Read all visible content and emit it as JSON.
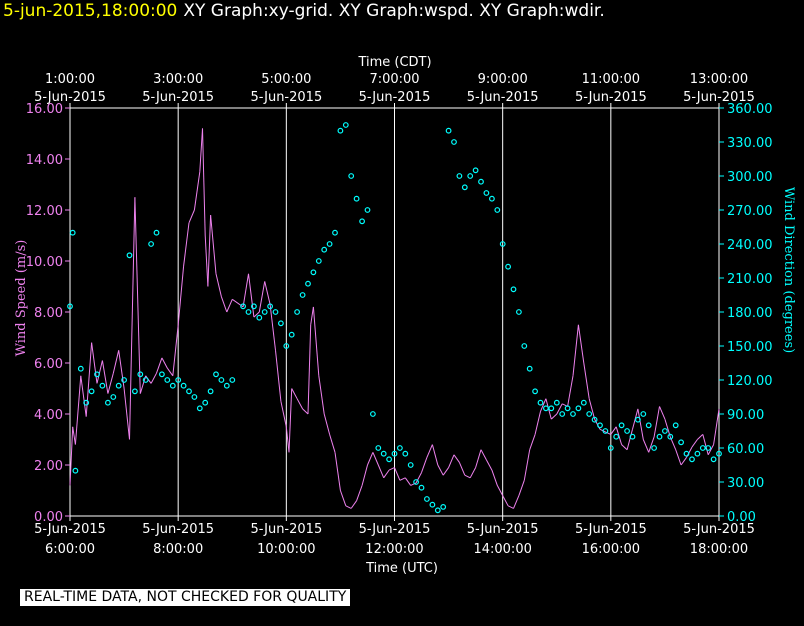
{
  "header": {
    "timestamp": "5-jun-2015,18:00:00",
    "graphs": "XY Graph:xy-grid.  XY Graph:wspd.  XY Graph:wdir."
  },
  "footer_note": "REAL-TIME DATA, NOT CHECKED FOR QUALITY",
  "colors": {
    "background": "#000000",
    "wspd": "#ee82ee",
    "wdir": "#00ffff",
    "grid": "#ffffff",
    "timestamp": "#ffff00"
  },
  "chart_data": {
    "type": "line",
    "grid": true,
    "x_top_title": "Time (CDT)",
    "x_bottom_title": "Time (UTC)",
    "x_range_utc_hours": [
      6.0,
      18.0
    ],
    "x_top_ticks": [
      {
        "time": "1:00:00",
        "date": "5-Jun-2015",
        "utc_hour": 6
      },
      {
        "time": "3:00:00",
        "date": "5-Jun-2015",
        "utc_hour": 8
      },
      {
        "time": "5:00:00",
        "date": "5-Jun-2015",
        "utc_hour": 10
      },
      {
        "time": "7:00:00",
        "date": "5-Jun-2015",
        "utc_hour": 12
      },
      {
        "time": "9:00:00",
        "date": "5-Jun-2015",
        "utc_hour": 14
      },
      {
        "time": "11:00:00",
        "date": "5-Jun-2015",
        "utc_hour": 16
      },
      {
        "time": "13:00:00",
        "date": "5-Jun-2015",
        "utc_hour": 18
      }
    ],
    "x_bottom_ticks": [
      {
        "time": "6:00:00",
        "date": "5-Jun-2015",
        "utc_hour": 6
      },
      {
        "time": "8:00:00",
        "date": "5-Jun-2015",
        "utc_hour": 8
      },
      {
        "time": "10:00:00",
        "date": "5-Jun-2015",
        "utc_hour": 10
      },
      {
        "time": "12:00:00",
        "date": "5-Jun-2015",
        "utc_hour": 12
      },
      {
        "time": "14:00:00",
        "date": "5-Jun-2015",
        "utc_hour": 14
      },
      {
        "time": "16:00:00",
        "date": "5-Jun-2015",
        "utc_hour": 16
      },
      {
        "time": "18:00:00",
        "date": "5-Jun-2015",
        "utc_hour": 18
      }
    ],
    "y_left": {
      "label": "Wind Speed (m/s)",
      "range": [
        0,
        16
      ],
      "ticks": [
        "0.00",
        "2.00",
        "4.00",
        "6.00",
        "8.00",
        "10.00",
        "12.00",
        "14.00",
        "16.00"
      ]
    },
    "y_right": {
      "label": "Wind Direction (degrees)",
      "range": [
        0,
        360
      ],
      "ticks": [
        "0.00",
        "30.00",
        "60.00",
        "90.00",
        "120.00",
        "150.00",
        "180.00",
        "210.00",
        "240.00",
        "270.00",
        "300.00",
        "330.00",
        "360.00"
      ]
    },
    "series": [
      {
        "key": "wspd",
        "axis": "left",
        "style": "line",
        "color": "#ee82ee",
        "x": [
          6.0,
          6.05,
          6.1,
          6.2,
          6.3,
          6.4,
          6.5,
          6.6,
          6.7,
          6.8,
          6.9,
          7.0,
          7.1,
          7.2,
          7.3,
          7.4,
          7.5,
          7.6,
          7.7,
          7.8,
          7.9,
          8.0,
          8.1,
          8.2,
          8.3,
          8.4,
          8.45,
          8.5,
          8.55,
          8.6,
          8.7,
          8.8,
          8.9,
          9.0,
          9.2,
          9.3,
          9.4,
          9.5,
          9.6,
          9.7,
          9.8,
          9.9,
          10.0,
          10.05,
          10.1,
          10.2,
          10.3,
          10.4,
          10.45,
          10.5,
          10.6,
          10.7,
          10.8,
          10.9,
          11.0,
          11.1,
          11.2,
          11.3,
          11.4,
          11.5,
          11.6,
          11.7,
          11.8,
          11.9,
          12.0,
          12.1,
          12.2,
          12.3,
          12.4,
          12.5,
          12.6,
          12.7,
          12.8,
          12.9,
          13.0,
          13.1,
          13.2,
          13.3,
          13.4,
          13.5,
          13.6,
          13.7,
          13.8,
          13.9,
          14.0,
          14.1,
          14.2,
          14.3,
          14.4,
          14.5,
          14.6,
          14.7,
          14.8,
          14.9,
          15.0,
          15.1,
          15.2,
          15.3,
          15.4,
          15.5,
          15.6,
          15.7,
          15.8,
          15.9,
          16.0,
          16.1,
          16.2,
          16.3,
          16.4,
          16.5,
          16.6,
          16.7,
          16.8,
          16.9,
          17.0,
          17.1,
          17.2,
          17.3,
          17.4,
          17.5,
          17.6,
          17.7,
          17.8,
          17.9,
          18.0
        ],
        "y": [
          1.2,
          3.5,
          2.8,
          5.5,
          3.9,
          6.8,
          5.2,
          6.1,
          4.8,
          5.6,
          6.5,
          5.0,
          3.0,
          12.5,
          4.8,
          5.5,
          5.2,
          5.6,
          6.2,
          5.8,
          5.5,
          7.5,
          9.8,
          11.5,
          12.0,
          13.5,
          15.2,
          11.0,
          9.0,
          11.8,
          9.5,
          8.6,
          8.0,
          8.5,
          8.2,
          9.5,
          7.8,
          8.0,
          9.2,
          8.3,
          6.5,
          4.5,
          3.5,
          2.5,
          5.0,
          4.6,
          4.2,
          4.0,
          7.5,
          8.2,
          5.5,
          4.0,
          3.2,
          2.5,
          1.0,
          0.4,
          0.3,
          0.6,
          1.2,
          2.0,
          2.5,
          2.0,
          1.5,
          1.8,
          1.9,
          1.4,
          1.5,
          1.2,
          1.3,
          1.7,
          2.3,
          2.8,
          2.0,
          1.6,
          1.9,
          2.4,
          2.1,
          1.6,
          1.5,
          1.9,
          2.6,
          2.2,
          1.8,
          1.2,
          0.8,
          0.4,
          0.3,
          0.8,
          1.4,
          2.6,
          3.2,
          4.1,
          4.6,
          3.8,
          4.0,
          4.4,
          4.3,
          5.5,
          7.5,
          6.0,
          4.6,
          3.8,
          3.4,
          3.3,
          3.2,
          3.5,
          2.8,
          2.6,
          3.4,
          4.2,
          3.0,
          2.5,
          3.1,
          4.3,
          3.8,
          3.1,
          2.6,
          2.0,
          2.3,
          2.7,
          3.0,
          3.2,
          2.4,
          2.8,
          4.2
        ]
      },
      {
        "key": "wdir",
        "axis": "right",
        "style": "markers",
        "color": "#00ffff",
        "x": [
          6.0,
          6.05,
          6.1,
          6.2,
          6.3,
          6.4,
          6.5,
          6.6,
          6.7,
          6.8,
          6.9,
          7.0,
          7.1,
          7.2,
          7.3,
          7.4,
          7.5,
          7.6,
          7.7,
          7.8,
          7.9,
          8.0,
          8.1,
          8.2,
          8.3,
          8.4,
          8.5,
          8.6,
          8.7,
          8.8,
          8.9,
          9.0,
          9.2,
          9.3,
          9.4,
          9.5,
          9.6,
          9.7,
          9.8,
          9.9,
          10.0,
          10.1,
          10.2,
          10.3,
          10.4,
          10.5,
          10.6,
          10.7,
          10.8,
          10.9,
          11.0,
          11.1,
          11.2,
          11.3,
          11.4,
          11.5,
          11.6,
          11.7,
          11.8,
          11.9,
          12.0,
          12.1,
          12.2,
          12.3,
          12.4,
          12.5,
          12.6,
          12.7,
          12.8,
          12.9,
          13.0,
          13.1,
          13.2,
          13.3,
          13.4,
          13.5,
          13.6,
          13.7,
          13.8,
          13.9,
          14.0,
          14.1,
          14.2,
          14.3,
          14.4,
          14.5,
          14.6,
          14.7,
          14.8,
          14.9,
          15.0,
          15.1,
          15.2,
          15.3,
          15.4,
          15.5,
          15.6,
          15.7,
          15.8,
          15.9,
          16.0,
          16.1,
          16.2,
          16.3,
          16.4,
          16.5,
          16.6,
          16.7,
          16.8,
          16.9,
          17.0,
          17.1,
          17.2,
          17.3,
          17.4,
          17.5,
          17.6,
          17.7,
          17.8,
          17.9,
          18.0
        ],
        "y": [
          185,
          250,
          40,
          130,
          100,
          110,
          125,
          115,
          100,
          105,
          115,
          120,
          230,
          110,
          125,
          120,
          240,
          250,
          125,
          120,
          115,
          120,
          115,
          110,
          105,
          95,
          100,
          110,
          125,
          120,
          115,
          120,
          185,
          180,
          185,
          175,
          180,
          185,
          180,
          170,
          150,
          160,
          180,
          195,
          205,
          215,
          225,
          235,
          240,
          250,
          340,
          345,
          300,
          280,
          260,
          270,
          90,
          60,
          55,
          50,
          55,
          60,
          55,
          45,
          30,
          25,
          15,
          10,
          5,
          8,
          340,
          330,
          300,
          290,
          300,
          305,
          295,
          285,
          280,
          270,
          240,
          220,
          200,
          180,
          150,
          130,
          110,
          100,
          95,
          95,
          100,
          90,
          95,
          90,
          95,
          100,
          90,
          85,
          80,
          75,
          60,
          70,
          80,
          75,
          70,
          85,
          90,
          80,
          60,
          70,
          75,
          70,
          80,
          65,
          55,
          50,
          55,
          60,
          60,
          50,
          55
        ]
      }
    ]
  }
}
